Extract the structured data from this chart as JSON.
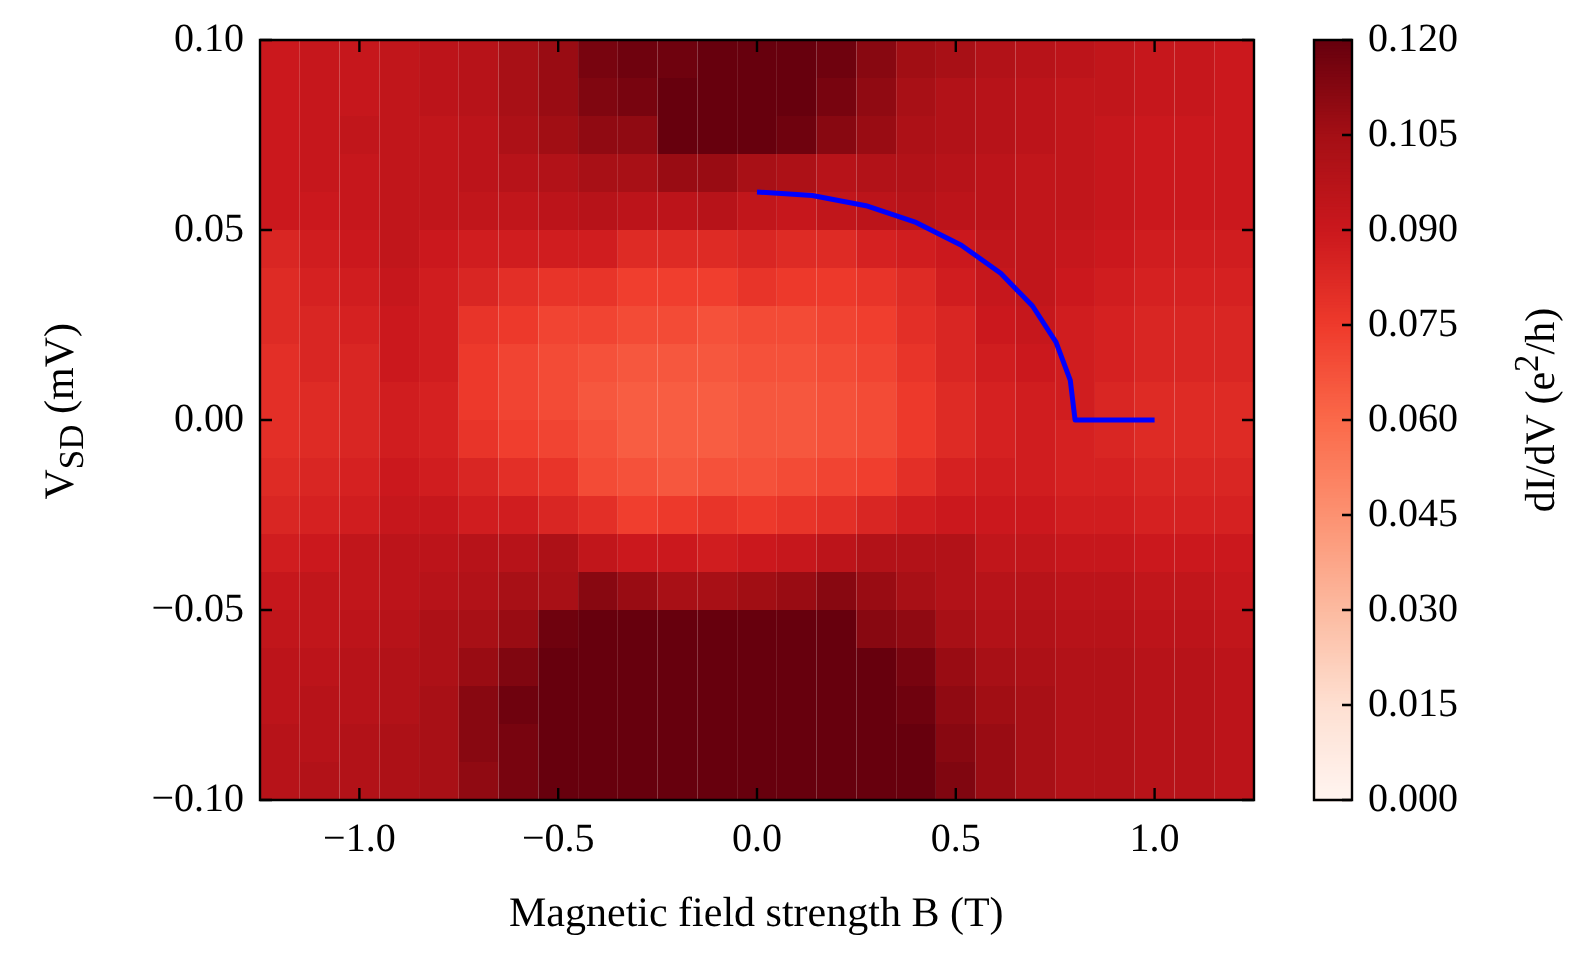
{
  "chart_data": {
    "type": "heatmap",
    "xlabel": "Magnetic field strength B (T)",
    "ylabel": "V$_{SD}$ (mV)",
    "clabel": "dI/dV (e$^{2}$/h)",
    "xlim": [
      -1.25,
      1.25
    ],
    "ylim": [
      -0.1,
      0.1
    ],
    "xticks": [
      {
        "value": -1,
        "label": "−1.0"
      },
      {
        "value": -0.5,
        "label": "−0.5"
      },
      {
        "value": 0,
        "label": "0.0"
      },
      {
        "value": 0.5,
        "label": "0.5"
      },
      {
        "value": 1,
        "label": "1.0"
      }
    ],
    "yticks": [
      {
        "value": -0.1,
        "label": "−0.10"
      },
      {
        "value": -0.05,
        "label": "−0.05"
      },
      {
        "value": 0,
        "label": "0.00"
      },
      {
        "value": 0.05,
        "label": "0.05"
      },
      {
        "value": 0.1,
        "label": "0.10"
      }
    ],
    "clim": [
      0,
      0.12
    ],
    "cticks": [
      {
        "value": 0,
        "label": "0.000"
      },
      {
        "value": 0.015,
        "label": "0.015"
      },
      {
        "value": 0.03,
        "label": "0.030"
      },
      {
        "value": 0.045,
        "label": "0.045"
      },
      {
        "value": 0.06,
        "label": "0.060"
      },
      {
        "value": 0.075,
        "label": "0.075"
      },
      {
        "value": 0.09,
        "label": "0.090"
      },
      {
        "value": 0.105,
        "label": "0.105"
      },
      {
        "value": 0.12,
        "label": "0.120"
      }
    ],
    "cells": [
      [
        0.09,
        0.092,
        0.092,
        0.094,
        0.096,
        0.098,
        0.104,
        0.108,
        0.116,
        0.118,
        0.118,
        0.12,
        0.12,
        0.12,
        0.118,
        0.112,
        0.106,
        0.104,
        0.1,
        0.098,
        0.096,
        0.094,
        0.092,
        0.092,
        0.09
      ],
      [
        0.09,
        0.092,
        0.092,
        0.094,
        0.096,
        0.098,
        0.104,
        0.108,
        0.114,
        0.116,
        0.12,
        0.12,
        0.12,
        0.12,
        0.116,
        0.11,
        0.104,
        0.1,
        0.098,
        0.096,
        0.094,
        0.094,
        0.092,
        0.092,
        0.09
      ],
      [
        0.09,
        0.092,
        0.094,
        0.094,
        0.094,
        0.096,
        0.102,
        0.106,
        0.11,
        0.11,
        0.12,
        0.12,
        0.12,
        0.118,
        0.112,
        0.108,
        0.102,
        0.1,
        0.098,
        0.096,
        0.094,
        0.092,
        0.09,
        0.09,
        0.09
      ],
      [
        0.09,
        0.092,
        0.092,
        0.094,
        0.094,
        0.096,
        0.098,
        0.1,
        0.104,
        0.104,
        0.108,
        0.108,
        0.104,
        0.102,
        0.098,
        0.1,
        0.1,
        0.098,
        0.096,
        0.094,
        0.094,
        0.092,
        0.09,
        0.09,
        0.09
      ],
      [
        0.09,
        0.09,
        0.092,
        0.094,
        0.094,
        0.094,
        0.094,
        0.096,
        0.098,
        0.096,
        0.096,
        0.098,
        0.094,
        0.092,
        0.094,
        0.096,
        0.098,
        0.096,
        0.096,
        0.094,
        0.094,
        0.092,
        0.09,
        0.09,
        0.09
      ],
      [
        0.084,
        0.088,
        0.09,
        0.094,
        0.09,
        0.088,
        0.088,
        0.088,
        0.088,
        0.082,
        0.082,
        0.082,
        0.084,
        0.082,
        0.082,
        0.086,
        0.088,
        0.09,
        0.094,
        0.094,
        0.092,
        0.09,
        0.088,
        0.088,
        0.088
      ],
      [
        0.082,
        0.086,
        0.088,
        0.092,
        0.088,
        0.084,
        0.08,
        0.078,
        0.078,
        0.074,
        0.074,
        0.074,
        0.078,
        0.076,
        0.076,
        0.078,
        0.082,
        0.088,
        0.092,
        0.094,
        0.09,
        0.088,
        0.086,
        0.086,
        0.086
      ],
      [
        0.082,
        0.084,
        0.086,
        0.09,
        0.088,
        0.078,
        0.076,
        0.072,
        0.072,
        0.07,
        0.07,
        0.068,
        0.07,
        0.07,
        0.072,
        0.074,
        0.08,
        0.084,
        0.09,
        0.092,
        0.088,
        0.086,
        0.084,
        0.084,
        0.084
      ],
      [
        0.08,
        0.084,
        0.084,
        0.09,
        0.088,
        0.076,
        0.072,
        0.07,
        0.068,
        0.066,
        0.066,
        0.066,
        0.068,
        0.068,
        0.07,
        0.072,
        0.078,
        0.084,
        0.088,
        0.09,
        0.088,
        0.086,
        0.084,
        0.084,
        0.084
      ],
      [
        0.08,
        0.082,
        0.084,
        0.088,
        0.086,
        0.076,
        0.072,
        0.07,
        0.066,
        0.064,
        0.064,
        0.064,
        0.066,
        0.066,
        0.068,
        0.07,
        0.076,
        0.082,
        0.086,
        0.088,
        0.088,
        0.084,
        0.082,
        0.082,
        0.082
      ],
      [
        0.08,
        0.082,
        0.084,
        0.088,
        0.086,
        0.078,
        0.074,
        0.072,
        0.068,
        0.064,
        0.064,
        0.064,
        0.066,
        0.066,
        0.068,
        0.07,
        0.076,
        0.082,
        0.086,
        0.088,
        0.086,
        0.084,
        0.082,
        0.082,
        0.082
      ],
      [
        0.082,
        0.084,
        0.086,
        0.09,
        0.088,
        0.084,
        0.08,
        0.078,
        0.07,
        0.068,
        0.066,
        0.068,
        0.068,
        0.07,
        0.072,
        0.074,
        0.08,
        0.086,
        0.088,
        0.088,
        0.086,
        0.086,
        0.084,
        0.084,
        0.084
      ],
      [
        0.084,
        0.086,
        0.088,
        0.092,
        0.092,
        0.088,
        0.088,
        0.084,
        0.08,
        0.074,
        0.076,
        0.078,
        0.076,
        0.078,
        0.08,
        0.084,
        0.088,
        0.09,
        0.09,
        0.09,
        0.088,
        0.088,
        0.086,
        0.086,
        0.086
      ],
      [
        0.088,
        0.09,
        0.094,
        0.096,
        0.096,
        0.098,
        0.098,
        0.102,
        0.094,
        0.09,
        0.09,
        0.088,
        0.09,
        0.092,
        0.096,
        0.1,
        0.1,
        0.1,
        0.094,
        0.094,
        0.092,
        0.092,
        0.09,
        0.09,
        0.09
      ],
      [
        0.092,
        0.094,
        0.094,
        0.096,
        0.098,
        0.1,
        0.104,
        0.104,
        0.112,
        0.108,
        0.104,
        0.104,
        0.106,
        0.108,
        0.112,
        0.108,
        0.104,
        0.1,
        0.098,
        0.098,
        0.096,
        0.096,
        0.094,
        0.094,
        0.092
      ],
      [
        0.094,
        0.094,
        0.096,
        0.098,
        0.102,
        0.104,
        0.108,
        0.118,
        0.12,
        0.12,
        0.12,
        0.12,
        0.12,
        0.12,
        0.12,
        0.112,
        0.11,
        0.104,
        0.1,
        0.1,
        0.098,
        0.098,
        0.096,
        0.096,
        0.094
      ],
      [
        0.096,
        0.096,
        0.098,
        0.1,
        0.102,
        0.108,
        0.114,
        0.12,
        0.12,
        0.12,
        0.12,
        0.12,
        0.12,
        0.12,
        0.12,
        0.12,
        0.116,
        0.108,
        0.104,
        0.102,
        0.1,
        0.1,
        0.098,
        0.098,
        0.096
      ],
      [
        0.096,
        0.098,
        0.098,
        0.1,
        0.104,
        0.112,
        0.118,
        0.12,
        0.12,
        0.12,
        0.12,
        0.12,
        0.12,
        0.12,
        0.12,
        0.12,
        0.118,
        0.11,
        0.106,
        0.104,
        0.1,
        0.1,
        0.098,
        0.098,
        0.096
      ],
      [
        0.098,
        0.098,
        0.1,
        0.102,
        0.104,
        0.112,
        0.116,
        0.12,
        0.12,
        0.12,
        0.12,
        0.12,
        0.12,
        0.12,
        0.12,
        0.12,
        0.12,
        0.112,
        0.108,
        0.104,
        0.1,
        0.1,
        0.098,
        0.098,
        0.096
      ],
      [
        0.098,
        0.1,
        0.1,
        0.102,
        0.104,
        0.11,
        0.116,
        0.12,
        0.12,
        0.12,
        0.12,
        0.12,
        0.12,
        0.12,
        0.12,
        0.12,
        0.12,
        0.114,
        0.108,
        0.104,
        0.1,
        0.1,
        0.098,
        0.098,
        0.096
      ]
    ],
    "series": [
      {
        "type": "line",
        "color": "#0000ff",
        "x": [
          0,
          0.139,
          0.274,
          0.4,
          0.514,
          0.613,
          0.693,
          0.752,
          0.788,
          0.8,
          1.0
        ],
        "values": [
          0.06,
          0.0591,
          0.0564,
          0.052,
          0.046,
          0.0386,
          0.03,
          0.0205,
          0.0104,
          0,
          0
        ]
      }
    ]
  }
}
